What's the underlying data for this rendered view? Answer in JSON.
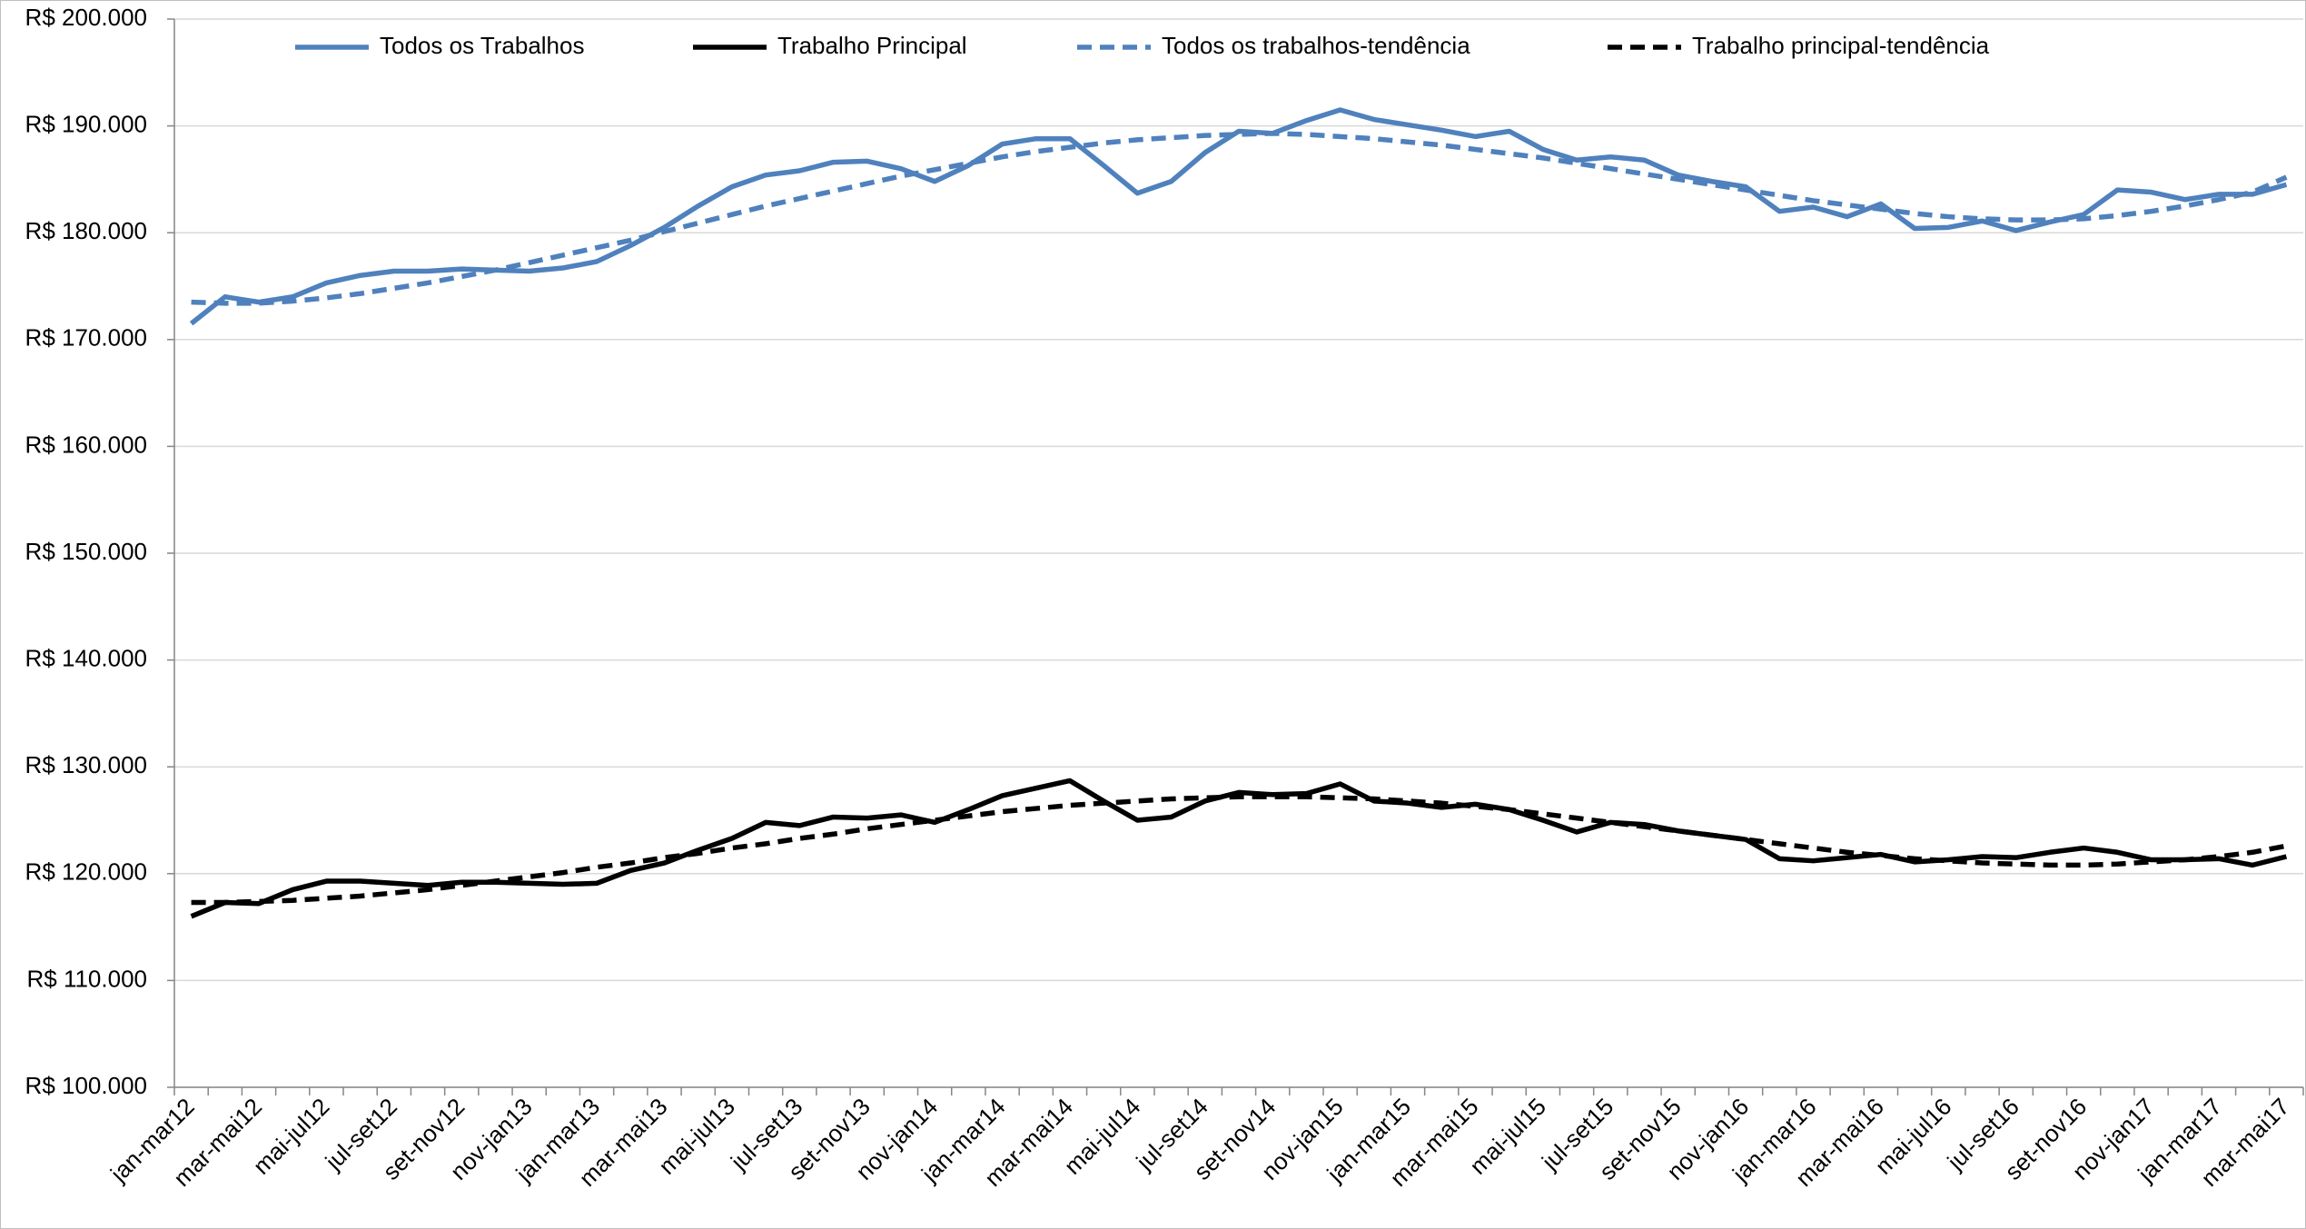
{
  "chart_data": {
    "type": "line",
    "categories": [
      "jan-mar12",
      null,
      "mar-mai12",
      null,
      "mai-jul12",
      null,
      "jul-set12",
      null,
      "set-nov12",
      null,
      "nov-jan13",
      null,
      "jan-mar13",
      null,
      "mar-mai13",
      null,
      "mai-jul13",
      null,
      "jul-set13",
      null,
      "set-nov13",
      null,
      "nov-jan14",
      null,
      "jan-mar14",
      null,
      "mar-mai14",
      null,
      "mai-jul14",
      null,
      "jul-set14",
      null,
      "set-nov14",
      null,
      "nov-jan15",
      null,
      "jan-mar15",
      null,
      "mar-mai15",
      null,
      "mai-jul15",
      null,
      "jul-set15",
      null,
      "set-nov15",
      null,
      "nov-jan16",
      null,
      "jan-mar16",
      null,
      "mar-mai16",
      null,
      "mai-jul16",
      null,
      "jul-set16",
      null,
      "set-nov16",
      null,
      "nov-jan17",
      null,
      "jan-mar17",
      null,
      "mar-mai17"
    ],
    "series": [
      {
        "name": "Todos os Trabalhos",
        "color": "#4f81bd",
        "dash": false,
        "values": [
          171500,
          174000,
          173500,
          174000,
          175300,
          176000,
          176400,
          176400,
          176600,
          176500,
          176400,
          176700,
          177300,
          178800,
          180500,
          182500,
          184300,
          185400,
          185800,
          186600,
          186700,
          186000,
          184800,
          186300,
          188300,
          188800,
          188800,
          186300,
          183700,
          184800,
          187500,
          189500,
          189300,
          190500,
          191500,
          190600,
          190100,
          189600,
          189000,
          189500,
          187800,
          186800,
          187100,
          186800,
          185400,
          184800,
          184300,
          182000,
          182400,
          181500,
          182700,
          180400,
          180500,
          181100,
          180200,
          181000,
          181700,
          184000,
          183800,
          183100,
          183600,
          183600,
          184500
        ]
      },
      {
        "name": "Trabalho Principal",
        "color": "#000000",
        "dash": false,
        "values": [
          116000,
          117300,
          117200,
          118500,
          119300,
          119300,
          119100,
          118900,
          119200,
          119200,
          119100,
          119000,
          119100,
          120300,
          121000,
          122200,
          123300,
          124800,
          124500,
          125300,
          125200,
          125500,
          124800,
          126000,
          127300,
          128000,
          128700,
          126800,
          125000,
          125300,
          126800,
          127600,
          127400,
          127500,
          128400,
          126800,
          126600,
          126200,
          126500,
          126000,
          125000,
          123900,
          124800,
          124600,
          124000,
          123600,
          123200,
          121400,
          121200,
          121500,
          121800,
          121100,
          121300,
          121600,
          121500,
          122000,
          122400,
          122000,
          121300,
          121300,
          121400,
          120800,
          121600
        ]
      },
      {
        "name": "Todos os trabalhos-tendência",
        "color": "#4f81bd",
        "dash": true,
        "values": [
          173500,
          173400,
          173400,
          173600,
          173900,
          174300,
          174800,
          175300,
          175900,
          176500,
          177200,
          177900,
          178600,
          179300,
          180100,
          180900,
          181700,
          182500,
          183200,
          183900,
          184600,
          185300,
          185900,
          186500,
          187100,
          187600,
          188000,
          188400,
          188700,
          188900,
          189100,
          189200,
          189300,
          189200,
          189000,
          188800,
          188500,
          188200,
          187800,
          187400,
          187000,
          186500,
          186000,
          185500,
          185000,
          184500,
          184000,
          183500,
          183000,
          182600,
          182200,
          181800,
          181500,
          181300,
          181200,
          181200,
          181300,
          181600,
          182000,
          182500,
          183100,
          183800,
          185200
        ]
      },
      {
        "name": "Trabalho principal-tendência",
        "color": "#000000",
        "dash": true,
        "values": [
          117300,
          117300,
          117400,
          117500,
          117700,
          117900,
          118200,
          118500,
          118900,
          119300,
          119700,
          120100,
          120600,
          121000,
          121500,
          121900,
          122400,
          122800,
          123300,
          123700,
          124200,
          124600,
          125000,
          125400,
          125800,
          126100,
          126400,
          126600,
          126800,
          127000,
          127100,
          127200,
          127200,
          127200,
          127100,
          127000,
          126800,
          126600,
          126300,
          126000,
          125600,
          125200,
          124800,
          124400,
          124000,
          123600,
          123200,
          122800,
          122400,
          122000,
          121700,
          121400,
          121200,
          121000,
          120900,
          120800,
          120800,
          120900,
          121100,
          121300,
          121600,
          122000,
          122600
        ]
      }
    ],
    "ylim": [
      100000,
      200000
    ],
    "yticks": [
      {
        "value": 100000,
        "label": "R$ 100.000"
      },
      {
        "value": 110000,
        "label": "R$ 110.000"
      },
      {
        "value": 120000,
        "label": "R$ 120.000"
      },
      {
        "value": 130000,
        "label": "R$ 130.000"
      },
      {
        "value": 140000,
        "label": "R$ 140.000"
      },
      {
        "value": 150000,
        "label": "R$ 150.000"
      },
      {
        "value": 160000,
        "label": "R$ 160.000"
      },
      {
        "value": 170000,
        "label": "R$ 170.000"
      },
      {
        "value": 180000,
        "label": "R$ 180.000"
      },
      {
        "value": 190000,
        "label": "R$ 190.000"
      },
      {
        "value": 200000,
        "label": "R$ 200.000"
      }
    ],
    "grid": true,
    "legend": "top"
  }
}
